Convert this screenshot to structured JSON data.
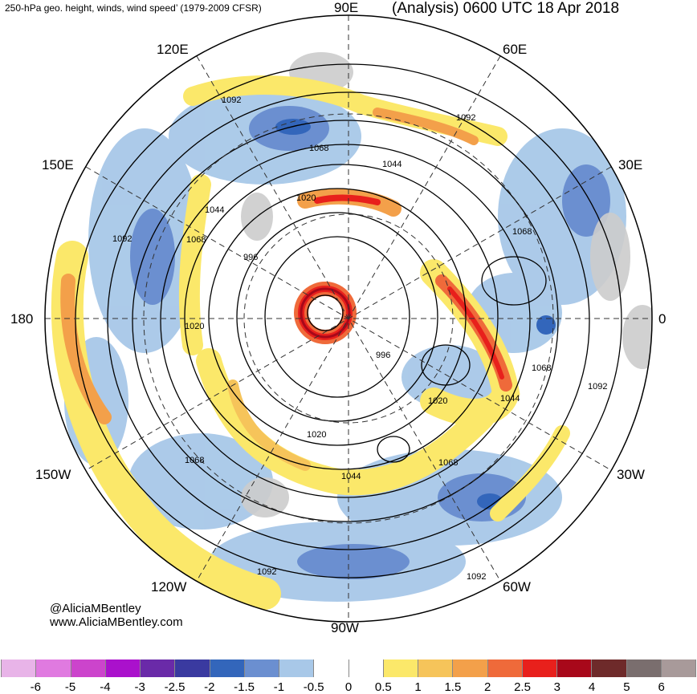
{
  "header": {
    "title_left": "250-hPa geo. height, winds, wind speed’ (1979-2009 CFSR)",
    "title_right": "(Analysis) 0600 UTC 18 Apr 2018"
  },
  "longitude_labels": {
    "e90": "90E",
    "e60": "60E",
    "e120": "120E",
    "e150": "150E",
    "e30": "30E",
    "d180": "180",
    "d0": "0",
    "w150": "150W",
    "w30": "30W",
    "w120": "120W",
    "w60": "60W",
    "w90": "90W"
  },
  "contour_labels": [
    "1092",
    "1068",
    "1044",
    "1020",
    "996"
  ],
  "credits": {
    "handle": "@AliciaMBentley",
    "site": "www.AliciaMBentley.com"
  },
  "colorbar": {
    "labels": [
      "-6",
      "-5",
      "-4",
      "-3",
      "-2.5",
      "-2",
      "-1.5",
      "-1",
      "-0.5",
      "0",
      "0.5",
      "1",
      "1.5",
      "2",
      "2.5",
      "3",
      "4",
      "5",
      "6"
    ],
    "colors": [
      "#e8b4e8",
      "#e07ae0",
      "#cc44cc",
      "#aa11cc",
      "#6a2aa8",
      "#3a3aa0",
      "#3366bb",
      "#6b8fd0",
      "#a8c8e8",
      "#ffffff",
      "#ffffff",
      "#fbe86a",
      "#f6c45a",
      "#f3a04a",
      "#ef6a3a",
      "#e8201c",
      "#a8081a",
      "#6e2a2a",
      "#7a6e6e",
      "#a89a9a"
    ]
  }
}
